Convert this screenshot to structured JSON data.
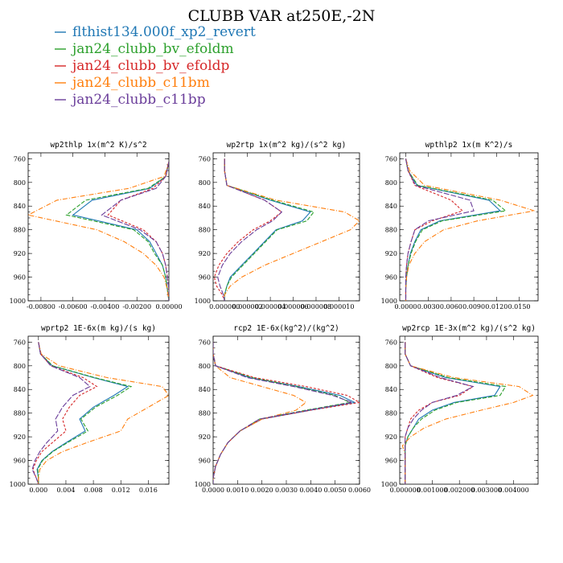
{
  "title": "CLUBB VAR at250E,-2N",
  "legend": [
    {
      "name": "flthist134.000f_xp2_revert",
      "color": "#1f77b4",
      "dash": ""
    },
    {
      "name": "jan24_clubb_bv_efoldm",
      "color": "#2ca02c",
      "dash": "5,2"
    },
    {
      "name": "jan24_clubb_bv_efoldp",
      "color": "#d62728",
      "dash": "3,2"
    },
    {
      "name": "jan24_clubb_c11bm",
      "color": "#ff7f0e",
      "dash": "6,2,1,2"
    },
    {
      "name": "jan24_clubb_c11bp",
      "color": "#6a3d9a",
      "dash": "7,2"
    }
  ],
  "chart_data": [
    {
      "type": "line",
      "title": "wp2thlp  1x(m^2 K)/s^2",
      "xlim": [
        -0.0088,
        0.0
      ],
      "ylim": [
        1000,
        750
      ],
      "xticks": [
        -0.008,
        -0.006,
        -0.004,
        -0.002,
        0.0
      ],
      "xticklabels": [
        "-0.00800",
        "-0.00600",
        "-0.00400",
        "-0.00200",
        "0.00000"
      ],
      "yticks": [
        760,
        800,
        840,
        880,
        920,
        960,
        1000
      ],
      "yticklabels": [
        "760",
        "800",
        "840",
        "880",
        "920",
        "960",
        "1000"
      ],
      "y": [
        765,
        790,
        810,
        830,
        855,
        880,
        900,
        920,
        940,
        960,
        980,
        1000
      ],
      "series": [
        {
          "name": "flthist134.000f_xp2_revert",
          "values": [
            0.0,
            -0.0002,
            -0.0012,
            -0.0048,
            -0.006,
            -0.002,
            -0.0012,
            -0.0008,
            -0.0004,
            -0.0002,
            -0.0001,
            0.0
          ]
        },
        {
          "name": "jan24_clubb_bv_efoldm",
          "values": [
            0.0,
            -0.0002,
            -0.0013,
            -0.0052,
            -0.0064,
            -0.0022,
            -0.0013,
            -0.0009,
            -0.0004,
            -0.0002,
            -0.0001,
            0.0
          ]
        },
        {
          "name": "jan24_clubb_bv_efoldp",
          "values": [
            0.0,
            -0.0002,
            -0.001,
            -0.003,
            -0.0038,
            -0.0016,
            -0.0008,
            -0.0004,
            -0.0002,
            -0.0001,
            0.0,
            0.0
          ]
        },
        {
          "name": "jan24_clubb_c11bm",
          "values": [
            0.0,
            -0.0003,
            -0.0025,
            -0.007,
            -0.0088,
            -0.0045,
            -0.0028,
            -0.0016,
            -0.0008,
            -0.0003,
            -0.0001,
            0.0
          ]
        },
        {
          "name": "jan24_clubb_c11bp",
          "values": [
            0.0,
            -0.0002,
            -0.0008,
            -0.003,
            -0.0042,
            -0.0018,
            -0.0008,
            -0.0004,
            -0.0002,
            -0.0001,
            0.0,
            0.0
          ]
        }
      ]
    },
    {
      "type": "line",
      "title": "wp2rtp  1x(m^2 kg)/(s^2 kg)",
      "xlim": [
        -1e-06,
        1.18e-05
      ],
      "ylim": [
        1000,
        750
      ],
      "xticks": [
        0.0,
        2e-06,
        4e-06,
        6e-06,
        8e-06,
        1e-05
      ],
      "xticklabels": [
        "0.000000",
        "0.000002",
        "0.000004",
        "0.000006",
        "0.000008",
        "0.000010"
      ],
      "yticks": [
        760,
        800,
        840,
        880,
        920,
        960,
        1000
      ],
      "yticklabels": [
        "760",
        "800",
        "840",
        "880",
        "920",
        "960",
        "1000"
      ],
      "y": [
        760,
        780,
        805,
        830,
        850,
        865,
        880,
        900,
        920,
        940,
        960,
        975,
        990,
        1000
      ],
      "series": [
        {
          "name": "flthist134.000f_xp2_revert",
          "values": [
            0.0,
            0.0,
            2e-07,
            4e-06,
            7.5e-06,
            6.8e-06,
            4.5e-06,
            3.5e-06,
            2.5e-06,
            1.5e-06,
            5e-07,
            2e-07,
            0.0,
            0.0
          ]
        },
        {
          "name": "jan24_clubb_bv_efoldm",
          "values": [
            0.0,
            0.0,
            2e-07,
            4.2e-06,
            7.8e-06,
            7.2e-06,
            4.6e-06,
            3.6e-06,
            2.6e-06,
            1.6e-06,
            6e-07,
            2e-07,
            0.0,
            0.0
          ]
        },
        {
          "name": "jan24_clubb_bv_efoldp",
          "values": [
            0.0,
            0.0,
            2e-07,
            3.5e-06,
            5e-06,
            4e-06,
            2.5e-06,
            1.2e-06,
            2e-07,
            -5e-07,
            -9e-07,
            -7e-07,
            -2e-07,
            0.0
          ]
        },
        {
          "name": "jan24_clubb_c11bm",
          "values": [
            0.0,
            0.0,
            2e-07,
            4.5e-06,
            1.05e-05,
            1.18e-05,
            1.1e-05,
            8.5e-06,
            6e-06,
            3.5e-06,
            1.5e-06,
            5e-07,
            0.0,
            0.0
          ]
        },
        {
          "name": "jan24_clubb_c11bp",
          "values": [
            0.0,
            0.0,
            2e-07,
            3.5e-06,
            5e-06,
            4.2e-06,
            2.8e-06,
            1.5e-06,
            5e-07,
            -2e-07,
            -6e-07,
            -4e-07,
            -1e-07,
            0.0
          ]
        }
      ]
    },
    {
      "type": "line",
      "title": "wpthlp2  1x(m K^2)/s",
      "xlim": [
        -0.0008,
        0.0175
      ],
      "ylim": [
        1000,
        750
      ],
      "xticks": [
        0.0,
        0.003,
        0.006,
        0.009,
        0.012,
        0.015
      ],
      "xticklabels": [
        "0.0000",
        "0.0030",
        "0.0060",
        "0.0090",
        "0.0120",
        "0.0150"
      ],
      "yticks": [
        760,
        800,
        840,
        880,
        920,
        960,
        1000
      ],
      "yticklabels": [
        "760",
        "800",
        "840",
        "880",
        "920",
        "960",
        "1000"
      ],
      "y": [
        760,
        780,
        805,
        830,
        848,
        865,
        880,
        900,
        920,
        940,
        960,
        980,
        1000
      ],
      "series": [
        {
          "name": "flthist134.000f_xp2_revert",
          "values": [
            0.0,
            0.0003,
            0.0015,
            0.011,
            0.0125,
            0.0045,
            0.002,
            0.0012,
            0.0006,
            0.0003,
            0.0001,
            0.0,
            0.0
          ]
        },
        {
          "name": "jan24_clubb_bv_efoldm",
          "values": [
            0.0,
            0.0003,
            0.0016,
            0.0115,
            0.0132,
            0.0048,
            0.0022,
            0.0013,
            0.0007,
            0.0003,
            0.0001,
            0.0,
            0.0
          ]
        },
        {
          "name": "jan24_clubb_bv_efoldp",
          "values": [
            0.0,
            0.0003,
            0.0012,
            0.006,
            0.0075,
            0.0035,
            0.0012,
            0.0007,
            0.0003,
            0.0001,
            0.0,
            0.0,
            0.0
          ]
        },
        {
          "name": "jan24_clubb_c11bm",
          "values": [
            0.0,
            0.0005,
            0.0025,
            0.0125,
            0.017,
            0.0095,
            0.005,
            0.0025,
            0.0012,
            0.0004,
            0.0001,
            0.0,
            0.0
          ]
        },
        {
          "name": "jan24_clubb_c11bp",
          "values": [
            0.0,
            0.0003,
            0.0013,
            0.0085,
            0.009,
            0.003,
            0.0012,
            0.0007,
            0.0003,
            0.0001,
            0.0,
            0.0,
            0.0
          ]
        }
      ]
    },
    {
      "type": "line",
      "title": "wprtp2  1E-6x(m kg)/(s kg)",
      "xlim": [
        -0.0015,
        0.019
      ],
      "ylim": [
        1000,
        750
      ],
      "xticks": [
        0.0,
        0.004,
        0.008,
        0.012,
        0.016
      ],
      "xticklabels": [
        "0.000",
        "0.004",
        "0.008",
        "0.012",
        "0.016"
      ],
      "yticks": [
        760,
        800,
        840,
        880,
        920,
        960,
        1000
      ],
      "yticklabels": [
        "760",
        "800",
        "840",
        "880",
        "920",
        "960",
        "1000"
      ],
      "y": [
        760,
        780,
        800,
        820,
        835,
        850,
        870,
        890,
        910,
        930,
        945,
        960,
        975,
        990,
        1000
      ],
      "series": [
        {
          "name": "flthist134.000f_xp2_revert",
          "values": [
            0.0,
            0.0003,
            0.002,
            0.008,
            0.013,
            0.011,
            0.008,
            0.006,
            0.0068,
            0.004,
            0.002,
            0.0005,
            -0.0002,
            0.0,
            0.0
          ]
        },
        {
          "name": "jan24_clubb_bv_efoldm",
          "values": [
            0.0,
            0.0003,
            0.0021,
            0.0082,
            0.0135,
            0.0115,
            0.0083,
            0.0062,
            0.0072,
            0.0042,
            0.0021,
            0.0006,
            -0.0001,
            0.0,
            0.0
          ]
        },
        {
          "name": "jan24_clubb_bv_efoldp",
          "values": [
            0.0,
            0.0003,
            0.0018,
            0.0065,
            0.0085,
            0.006,
            0.0045,
            0.0035,
            0.004,
            0.002,
            0.0005,
            -0.0003,
            -0.0008,
            -0.0003,
            0.0
          ]
        },
        {
          "name": "jan24_clubb_c11bm",
          "values": [
            0.0,
            0.0004,
            0.003,
            0.01,
            0.018,
            0.019,
            0.016,
            0.013,
            0.012,
            0.007,
            0.0035,
            0.0012,
            0.0002,
            0.0,
            0.0
          ]
        },
        {
          "name": "jan24_clubb_c11bp",
          "values": [
            0.0,
            0.0003,
            0.0018,
            0.006,
            0.0075,
            0.005,
            0.0035,
            0.0025,
            0.0028,
            0.0012,
            0.0002,
            -0.0005,
            -0.0009,
            -0.0003,
            0.0
          ]
        }
      ]
    },
    {
      "type": "line",
      "title": "rcp2  1E-6x(kg^2)/(kg^2)",
      "xlim": [
        0.0,
        0.006
      ],
      "ylim": [
        1000,
        750
      ],
      "xticks": [
        0.0,
        0.001,
        0.002,
        0.003,
        0.004,
        0.005,
        0.006
      ],
      "xticklabels": [
        "0.0000",
        "0.0010",
        "0.0020",
        "0.0030",
        "0.0040",
        "0.0050",
        "0.0060"
      ],
      "yticks": [
        760,
        800,
        840,
        880,
        920,
        960,
        1000
      ],
      "yticklabels": [
        "760",
        "800",
        "840",
        "880",
        "920",
        "960",
        "1000"
      ],
      "y": [
        760,
        780,
        800,
        820,
        835,
        850,
        862,
        875,
        890,
        910,
        930,
        950,
        970,
        990,
        1000
      ],
      "series": [
        {
          "name": "flthist134.000f_xp2_revert",
          "values": [
            0.0,
            0.0,
            0.0001,
            0.0015,
            0.0035,
            0.0052,
            0.0058,
            0.004,
            0.002,
            0.0011,
            0.0006,
            0.0003,
            0.0001,
            0.0,
            0.0
          ]
        },
        {
          "name": "jan24_clubb_bv_efoldm",
          "values": [
            0.0,
            0.0,
            0.0001,
            0.0016,
            0.0034,
            0.005,
            0.0056,
            0.0038,
            0.0019,
            0.0011,
            0.0006,
            0.0003,
            0.0001,
            0.0,
            0.0
          ]
        },
        {
          "name": "jan24_clubb_bv_efoldp",
          "values": [
            0.0,
            0.0,
            0.0001,
            0.0017,
            0.0038,
            0.0055,
            0.006,
            0.004,
            0.002,
            0.0011,
            0.0006,
            0.0003,
            0.0001,
            0.0,
            0.0
          ]
        },
        {
          "name": "jan24_clubb_c11bm",
          "values": [
            0.0,
            0.0,
            0.0001,
            0.0007,
            0.002,
            0.0033,
            0.0038,
            0.0034,
            0.002,
            0.0011,
            0.0006,
            0.0003,
            0.0001,
            0.0,
            0.0
          ]
        },
        {
          "name": "jan24_clubb_c11bp",
          "values": [
            0.0,
            0.0,
            0.0001,
            0.0014,
            0.0033,
            0.0049,
            0.0057,
            0.0039,
            0.0019,
            0.0011,
            0.0006,
            0.0003,
            0.0001,
            0.0,
            0.0
          ]
        }
      ]
    },
    {
      "type": "line",
      "title": "wp2rcp  1E-3x(m^2 kg)/(s^2 kg)",
      "xlim": [
        -0.0002,
        0.0049
      ],
      "ylim": [
        1000,
        750
      ],
      "xticks": [
        0.0,
        0.001,
        0.002,
        0.003,
        0.004
      ],
      "xticklabels": [
        "0.000000",
        "0.001000",
        "0.002000",
        "0.003000",
        "0.004000"
      ],
      "yticks": [
        760,
        800,
        840,
        880,
        920,
        960,
        1000
      ],
      "yticklabels": [
        "760",
        "800",
        "840",
        "880",
        "920",
        "960",
        "1000"
      ],
      "y": [
        760,
        780,
        800,
        820,
        835,
        850,
        862,
        875,
        890,
        905,
        920,
        935,
        950,
        970,
        990,
        1000
      ],
      "series": [
        {
          "name": "flthist134.000f_xp2_revert",
          "values": [
            0.0,
            0.0,
            0.0002,
            0.0015,
            0.0035,
            0.0033,
            0.0018,
            0.001,
            0.0005,
            0.0003,
            0.0001,
            0.0,
            0.0,
            0.0,
            0.0,
            0.0
          ]
        },
        {
          "name": "jan24_clubb_bv_efoldm",
          "values": [
            0.0,
            0.0,
            0.0002,
            0.0016,
            0.0037,
            0.0035,
            0.0019,
            0.0011,
            0.0006,
            0.0003,
            0.0001,
            0.0,
            0.0,
            0.0,
            0.0,
            0.0
          ]
        },
        {
          "name": "jan24_clubb_bv_efoldp",
          "values": [
            0.0,
            0.0,
            0.0002,
            0.0012,
            0.0025,
            0.002,
            0.001,
            0.0005,
            0.0002,
            0.0001,
            0.0,
            0.0,
            0.0,
            0.0,
            0.0,
            0.0
          ]
        },
        {
          "name": "jan24_clubb_c11bm",
          "values": [
            0.0,
            0.0,
            0.0002,
            0.0018,
            0.0042,
            0.0047,
            0.004,
            0.0028,
            0.0015,
            0.0007,
            0.0002,
            -0.0001,
            0.0,
            0.0,
            0.0,
            0.0
          ]
        },
        {
          "name": "jan24_clubb_c11bp",
          "values": [
            0.0,
            0.0,
            0.0002,
            0.0013,
            0.0025,
            0.0019,
            0.001,
            0.0006,
            0.0003,
            0.0001,
            0.0,
            0.0,
            0.0,
            0.0,
            0.0,
            0.0
          ]
        }
      ]
    }
  ]
}
